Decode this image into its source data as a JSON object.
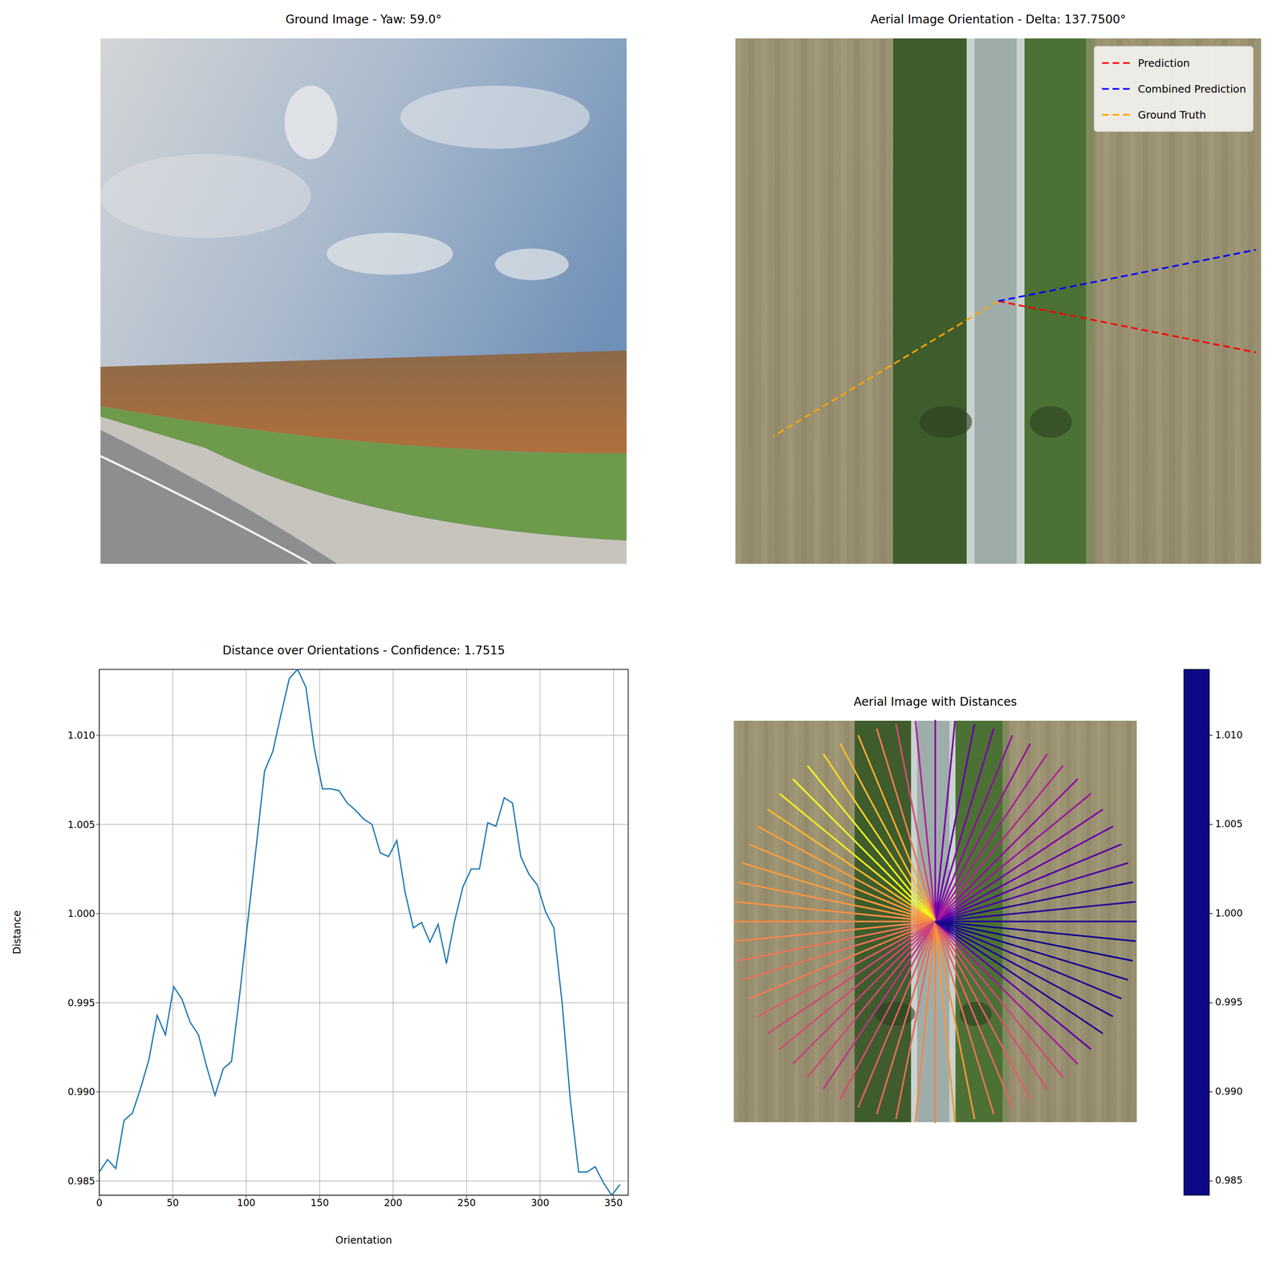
{
  "chart_data": [
    {
      "type": "image",
      "title": "Ground Image - Yaw: 59.0°"
    },
    {
      "type": "image",
      "title": "Aerial Image Orientation - Delta: 137.7500°",
      "legend": "upper right",
      "series": [
        {
          "name": "Prediction",
          "color": "#ff0000",
          "orientation": 348.75,
          "line_style": "dashed"
        },
        {
          "name": "Combined Prediction",
          "color": "#0000ff",
          "orientation": 11.25,
          "line_style": "dashed"
        },
        {
          "name": "Ground Truth",
          "color": "#ffa500",
          "orientation": 211,
          "line_style": "dashed"
        }
      ]
    },
    {
      "type": "line",
      "title": "Distance over Orientations - Confidence: 1.7515",
      "x_label": "Orientation",
      "y_label": "Distance",
      "color": "#1f77b4",
      "grid": true,
      "x": [
        0,
        5.625,
        11.25,
        16.875,
        22.5,
        28.125,
        33.75,
        39.375,
        45,
        50.625,
        56.25,
        61.875,
        67.5,
        73.125,
        78.75,
        84.375,
        90,
        95.625,
        101.25,
        106.875,
        112.5,
        118.125,
        123.75,
        129.375,
        135,
        140.625,
        146.25,
        151.875,
        157.5,
        163.125,
        168.75,
        174.375,
        180,
        185.625,
        191.25,
        196.875,
        202.5,
        208.125,
        213.75,
        219.375,
        225,
        230.625,
        236.25,
        241.875,
        247.5,
        253.125,
        258.75,
        264.375,
        270,
        275.625,
        281.25,
        286.875,
        292.5,
        298.125,
        303.75,
        309.375,
        315,
        320.625,
        326.25,
        331.875,
        337.5,
        343.125,
        348.75,
        354.375
      ],
      "values": [
        0.9855,
        0.9862,
        0.9857,
        0.9884,
        0.9888,
        0.9902,
        0.9918,
        0.9943,
        0.9932,
        0.9959,
        0.9952,
        0.9939,
        0.9932,
        0.9914,
        0.9898,
        0.9913,
        0.9917,
        0.9955,
        0.9997,
        1.0038,
        1.008,
        1.0091,
        1.0112,
        1.0132,
        1.0137,
        1.0127,
        1.0093,
        1.007,
        1.007,
        1.0069,
        1.0062,
        1.0058,
        1.0053,
        1.005,
        1.0034,
        1.0032,
        1.0041,
        1.0012,
        0.9992,
        0.9995,
        0.9984,
        0.9994,
        0.9972,
        0.9996,
        1.0015,
        1.0025,
        1.0025,
        1.0051,
        1.0049,
        1.0065,
        1.0062,
        1.0032,
        1.0022,
        1.0016,
        1.0001,
        0.9992,
        0.995,
        0.9895,
        0.9855,
        0.9855,
        0.9858,
        0.9849,
        0.9842,
        0.9848
      ],
      "xlim": [
        0,
        360
      ],
      "xticks": [
        0,
        50,
        100,
        150,
        200,
        250,
        300,
        350
      ],
      "ylim": [
        0.9842,
        1.0137
      ],
      "yticks": [
        0.985,
        {
          "value": 0.99,
          "label": "0.990"
        },
        0.995,
        {
          "value": 1,
          "label": "1.000"
        },
        1.005,
        {
          "value": 1.01,
          "label": "1.010"
        }
      ]
    },
    {
      "type": "image",
      "title": "Aerial Image with Distances",
      "colorbar_range": [
        0.9842,
        1.0137
      ],
      "colorbar_ticks": [
        0.985,
        {
          "value": 0.99,
          "label": "0.990"
        },
        0.995,
        {
          "value": 1,
          "label": "1.000"
        },
        1.005,
        {
          "value": 1.01,
          "label": "1.010"
        }
      ]
    }
  ]
}
